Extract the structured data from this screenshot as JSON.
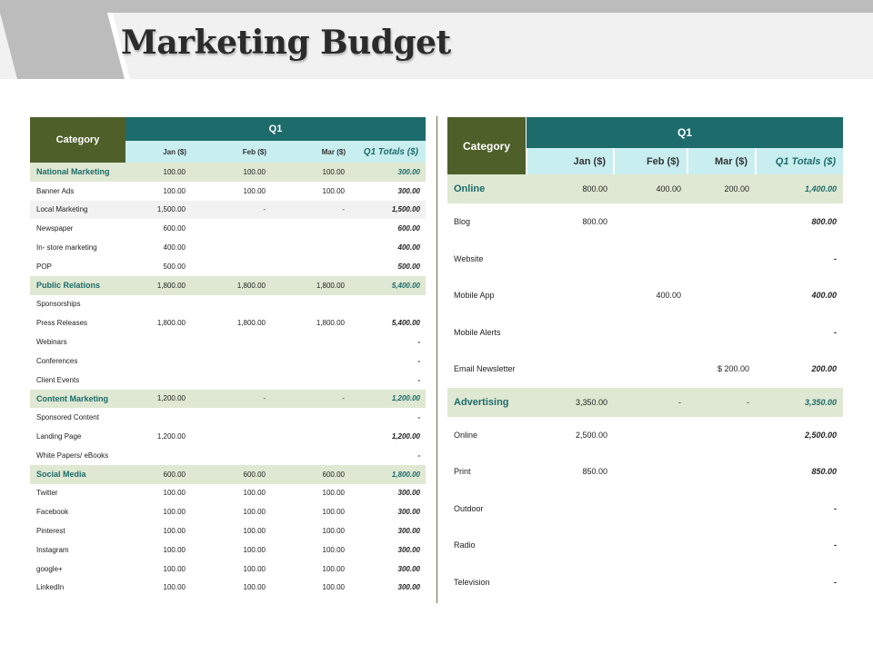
{
  "title": "Marketing Budget",
  "left_table": {
    "category_header": "Category",
    "quarter_header": "Q1",
    "month_headers": [
      "Jan  ($)",
      "Feb ($)",
      "Mar ($)",
      "Q1 Totals ($)"
    ],
    "rows": [
      {
        "label": "National Marketing",
        "jan": "100.00",
        "feb": "100.00",
        "mar": "100.00",
        "total": "300.00",
        "type": "group"
      },
      {
        "label": "Banner Ads",
        "jan": "100.00",
        "feb": "100.00",
        "mar": "100.00",
        "total": "300.00",
        "type": "item"
      },
      {
        "label": "Local Marketing",
        "jan": "1,500.00",
        "feb": "-",
        "mar": "-",
        "total": "1,500.00",
        "type": "alt"
      },
      {
        "label": "Newspaper",
        "jan": "600.00",
        "feb": "",
        "mar": "",
        "total": "600.00",
        "type": "item"
      },
      {
        "label": "In- store marketing",
        "jan": "400.00",
        "feb": "",
        "mar": "",
        "total": "400.00",
        "type": "item"
      },
      {
        "label": "POP",
        "jan": "500.00",
        "feb": "",
        "mar": "",
        "total": "500.00",
        "type": "item"
      },
      {
        "label": "Public Relations",
        "jan": "1,800.00",
        "feb": "1,800.00",
        "mar": "1,800.00",
        "total": "5,400.00",
        "type": "group"
      },
      {
        "label": "Sponsorships",
        "jan": "",
        "feb": "",
        "mar": "",
        "total": "",
        "type": "item"
      },
      {
        "label": "Press Releases",
        "jan": "1,800.00",
        "feb": "1,800.00",
        "mar": "1,800.00",
        "total": "5,400.00",
        "type": "item"
      },
      {
        "label": "Webinars",
        "jan": "",
        "feb": "",
        "mar": "",
        "total": "-",
        "type": "item"
      },
      {
        "label": "Conferences",
        "jan": "",
        "feb": "",
        "mar": "",
        "total": "-",
        "type": "item"
      },
      {
        "label": "Client Events",
        "jan": "",
        "feb": "",
        "mar": "",
        "total": "-",
        "type": "item"
      },
      {
        "label": "Content Marketing",
        "jan": "1,200.00",
        "feb": "-",
        "mar": "-",
        "total": "1,200.00",
        "type": "group"
      },
      {
        "label": "Sponsored Content",
        "jan": "",
        "feb": "",
        "mar": "",
        "total": "-",
        "type": "item"
      },
      {
        "label": "Landing Page",
        "jan": "1,200.00",
        "feb": "",
        "mar": "",
        "total": "1,200.00",
        "type": "item"
      },
      {
        "label": "White Papers/ eBooks",
        "jan": "",
        "feb": "",
        "mar": "",
        "total": "-",
        "type": "item"
      },
      {
        "label": "Social Media",
        "jan": "600.00",
        "feb": "600.00",
        "mar": "600.00",
        "total": "1,800.00",
        "type": "group"
      },
      {
        "label": "Twitter",
        "jan": "100.00",
        "feb": "100.00",
        "mar": "100.00",
        "total": "300.00",
        "type": "item"
      },
      {
        "label": "Facebook",
        "jan": "100.00",
        "feb": "100.00",
        "mar": "100.00",
        "total": "300.00",
        "type": "item"
      },
      {
        "label": "Pinterest",
        "jan": "100.00",
        "feb": "100.00",
        "mar": "100.00",
        "total": "300.00",
        "type": "item"
      },
      {
        "label": "Instagram",
        "jan": "100.00",
        "feb": "100.00",
        "mar": "100.00",
        "total": "300.00",
        "type": "item"
      },
      {
        "label": "google+",
        "jan": "100.00",
        "feb": "100.00",
        "mar": "100.00",
        "total": "300.00",
        "type": "item"
      },
      {
        "label": "LinkedIn",
        "jan": "100.00",
        "feb": "100.00",
        "mar": "100.00",
        "total": "300.00",
        "type": "item"
      }
    ]
  },
  "right_table": {
    "category_header": "Category",
    "quarter_header": "Q1",
    "month_headers": [
      "Jan ($)",
      "Feb ($)",
      "Mar ($)",
      "Q1 Totals ($)"
    ],
    "rows": [
      {
        "label": "Online",
        "jan": "800.00",
        "feb": "400.00",
        "mar": "200.00",
        "total": "1,400.00",
        "type": "group"
      },
      {
        "label": "Blog",
        "jan": "800.00",
        "feb": "",
        "mar": "",
        "total": "800.00",
        "type": "item"
      },
      {
        "label": "Website",
        "jan": "",
        "feb": "",
        "mar": "",
        "total": "-",
        "type": "item"
      },
      {
        "label": "Mobile App",
        "jan": "",
        "feb": "400.00",
        "mar": "",
        "total": "400.00",
        "type": "item"
      },
      {
        "label": "Mobile Alerts",
        "jan": "",
        "feb": "",
        "mar": "",
        "total": "-",
        "type": "item"
      },
      {
        "label": "Email Newsletter",
        "jan": "",
        "feb": "",
        "mar": "$ 200.00",
        "total": "200.00",
        "type": "item"
      },
      {
        "label": "Advertising",
        "jan": "3,350.00",
        "feb": "-",
        "mar": "-",
        "total": "3,350.00",
        "type": "group"
      },
      {
        "label": "Online",
        "jan": "2,500.00",
        "feb": "",
        "mar": "",
        "total": "2,500.00",
        "type": "item"
      },
      {
        "label": "Print",
        "jan": "850.00",
        "feb": "",
        "mar": "",
        "total": "850.00",
        "type": "item"
      },
      {
        "label": "Outdoor",
        "jan": "",
        "feb": "",
        "mar": "",
        "total": "-",
        "type": "item"
      },
      {
        "label": "Radio",
        "jan": "",
        "feb": "",
        "mar": "",
        "total": "-",
        "type": "item"
      },
      {
        "label": "Television",
        "jan": "",
        "feb": "",
        "mar": "",
        "total": "-",
        "type": "item"
      }
    ]
  }
}
